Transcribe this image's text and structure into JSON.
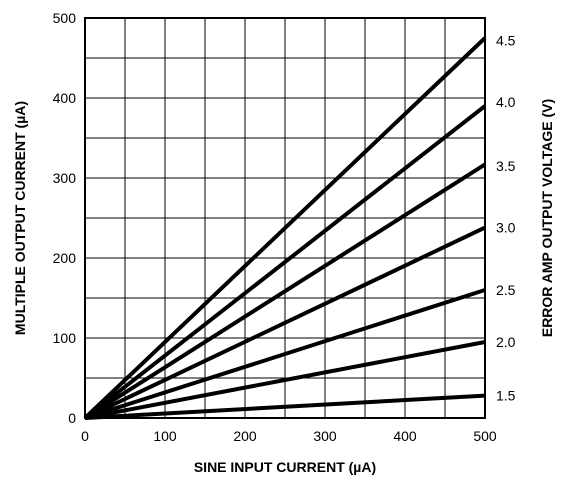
{
  "chart_data": {
    "type": "line",
    "xlabel": "SINE INPUT CURRENT (µA)",
    "ylabel": "MULTIPLE OUTPUT CURRENT (µA)",
    "y2label": "ERROR AMP OUTPUT VOLTAGE (V)",
    "xlim": [
      0,
      500
    ],
    "ylim": [
      0,
      500
    ],
    "x_ticks": [
      0,
      100,
      200,
      300,
      400,
      500
    ],
    "y_ticks": [
      0,
      100,
      200,
      300,
      400,
      500
    ],
    "y2_ticks": [
      "1.5",
      "2.0",
      "2.5",
      "3.0",
      "3.5",
      "4.0",
      "4.5"
    ],
    "y2_tick_values": [
      28,
      95,
      160,
      238,
      315,
      395,
      472
    ],
    "grid": true,
    "grid_x_step": 50,
    "grid_y_step": 50,
    "line_color": "#000000",
    "series": [
      {
        "x": [
          0,
          500
        ],
        "values": [
          0,
          28
        ]
      },
      {
        "x": [
          0,
          500
        ],
        "values": [
          0,
          95
        ]
      },
      {
        "x": [
          0,
          500
        ],
        "values": [
          0,
          160
        ]
      },
      {
        "x": [
          0,
          500
        ],
        "values": [
          0,
          238
        ]
      },
      {
        "x": [
          0,
          500
        ],
        "values": [
          0,
          317
        ]
      },
      {
        "x": [
          0,
          500
        ],
        "values": [
          0,
          390
        ]
      },
      {
        "x": [
          0,
          500
        ],
        "values": [
          0,
          475
        ]
      }
    ]
  }
}
